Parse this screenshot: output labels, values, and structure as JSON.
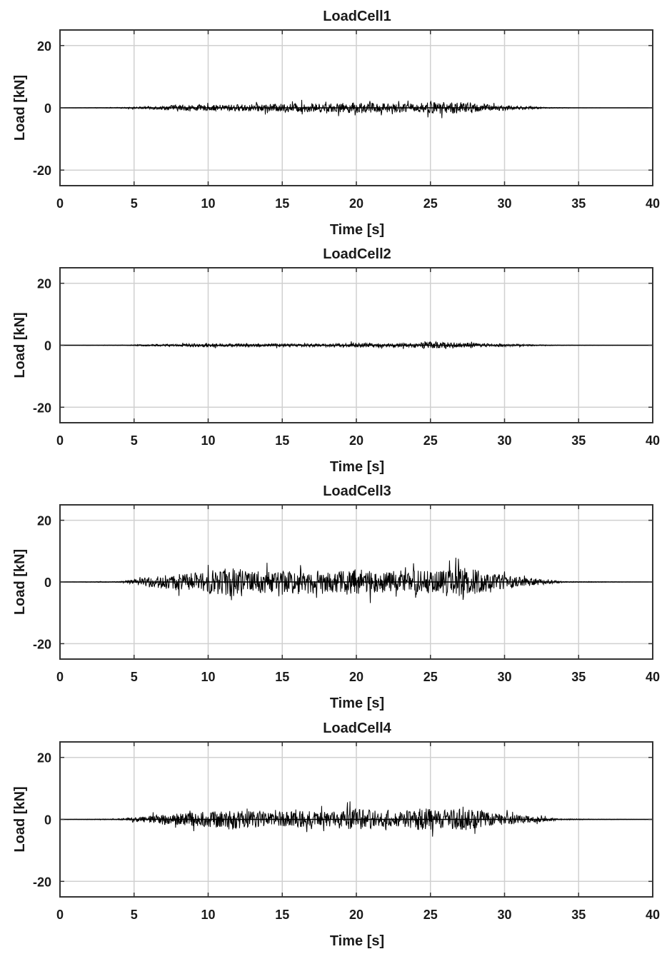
{
  "colors": {
    "signal": "#000000",
    "grid": "#d0d0d0",
    "axes": "#333333"
  },
  "chart_data": [
    {
      "type": "line",
      "title": "LoadCell1",
      "xlabel": "Time [s]",
      "ylabel": "Load [kN]",
      "xlim": [
        0,
        40
      ],
      "ylim": [
        -25,
        25
      ],
      "xticks": [
        0,
        5,
        10,
        15,
        20,
        25,
        30,
        35,
        40
      ],
      "yticks": [
        20,
        0,
        -20
      ],
      "grid": true,
      "envelope": {
        "x": [
          0,
          4,
          6,
          8,
          10,
          12,
          14,
          16,
          18,
          20,
          22,
          24,
          25,
          27,
          29,
          31,
          33,
          35,
          40
        ],
        "amp": [
          0,
          0.2,
          0.8,
          1.8,
          1.6,
          2.0,
          2.2,
          2.6,
          2.4,
          3.2,
          2.8,
          2.4,
          3.5,
          3.4,
          2.0,
          1.0,
          0.3,
          0.05,
          0
        ]
      }
    },
    {
      "type": "line",
      "title": "LoadCell2",
      "xlabel": "Time [s]",
      "ylabel": "Load [kN]",
      "xlim": [
        0,
        40
      ],
      "ylim": [
        -25,
        25
      ],
      "xticks": [
        0,
        5,
        10,
        15,
        20,
        25,
        30,
        35,
        40
      ],
      "yticks": [
        20,
        0,
        -20
      ],
      "grid": true,
      "envelope": {
        "x": [
          0,
          4,
          6,
          8,
          10,
          12,
          14,
          16,
          18,
          20,
          22,
          24,
          25,
          27,
          29,
          31,
          33,
          35,
          40
        ],
        "amp": [
          0,
          0.1,
          0.5,
          0.9,
          1.0,
          0.9,
          1.0,
          0.9,
          1.0,
          1.4,
          1.2,
          1.2,
          2.2,
          1.6,
          1.0,
          0.6,
          0.2,
          0.05,
          0
        ]
      }
    },
    {
      "type": "line",
      "title": "LoadCell3",
      "xlabel": "Time [s]",
      "ylabel": "Load [kN]",
      "xlim": [
        0,
        40
      ],
      "ylim": [
        -25,
        25
      ],
      "xticks": [
        0,
        5,
        10,
        15,
        20,
        25,
        30,
        35,
        40
      ],
      "yticks": [
        20,
        0,
        -20
      ],
      "grid": true,
      "envelope": {
        "x": [
          0,
          4,
          5,
          7,
          9,
          11.5,
          13,
          15,
          16.5,
          18,
          20,
          21.5,
          23,
          24.5,
          26,
          27,
          29,
          31,
          33,
          34,
          40
        ],
        "amp": [
          0,
          0.3,
          1.5,
          4.0,
          5.5,
          8.5,
          6.5,
          6.5,
          7.5,
          6.0,
          7.5,
          6.5,
          5.5,
          7.5,
          6.5,
          9.0,
          5.5,
          3.0,
          1.2,
          0.3,
          0
        ]
      }
    },
    {
      "type": "line",
      "title": "LoadCell4",
      "xlabel": "Time [s]",
      "ylabel": "Load [kN]",
      "xlim": [
        0,
        40
      ],
      "ylim": [
        -25,
        25
      ],
      "xticks": [
        0,
        5,
        10,
        15,
        20,
        25,
        30,
        35,
        40
      ],
      "yticks": [
        20,
        0,
        -20
      ],
      "grid": true,
      "envelope": {
        "x": [
          0,
          4,
          5,
          7,
          9,
          11.5,
          13,
          15,
          16.5,
          18,
          20,
          21.5,
          23,
          24.5,
          26,
          27,
          29,
          31,
          33,
          34,
          40
        ],
        "amp": [
          0,
          0.3,
          1.2,
          3.0,
          4.0,
          5.5,
          5.0,
          4.5,
          5.0,
          4.5,
          6.5,
          5.0,
          4.0,
          7.0,
          5.0,
          7.0,
          4.0,
          2.5,
          1.0,
          0.3,
          0
        ]
      }
    }
  ]
}
